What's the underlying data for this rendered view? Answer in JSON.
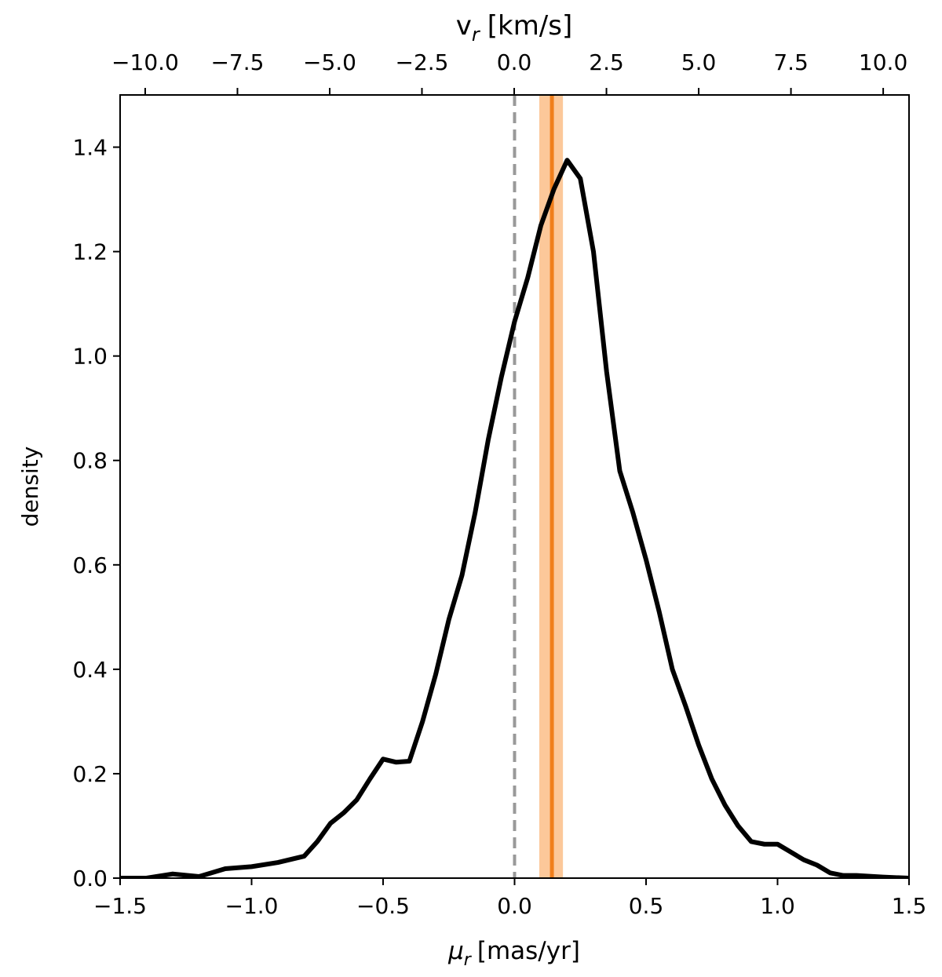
{
  "chart_data": {
    "type": "line",
    "ylabel": "density",
    "xlabel": {
      "symbol": "μ",
      "sub": "r",
      "unit": "[mas/yr]"
    },
    "x2label": {
      "symbol": "v",
      "sub": "r",
      "unit": "[km/s]"
    },
    "x": [
      -1.5,
      -1.4,
      -1.3,
      -1.2,
      -1.1,
      -1.0,
      -0.9,
      -0.8,
      -0.75,
      -0.7,
      -0.65,
      -0.6,
      -0.55,
      -0.5,
      -0.45,
      -0.4,
      -0.35,
      -0.3,
      -0.25,
      -0.2,
      -0.15,
      -0.1,
      -0.05,
      0,
      0.05,
      0.1,
      0.15,
      0.2,
      0.25,
      0.3,
      0.35,
      0.4,
      0.45,
      0.5,
      0.55,
      0.6,
      0.65,
      0.7,
      0.75,
      0.8,
      0.85,
      0.9,
      0.95,
      1.0,
      1.05,
      1.1,
      1.15,
      1.2,
      1.25,
      1.3,
      1.4,
      1.5
    ],
    "series": [
      {
        "color": "#000000",
        "values": [
          0.0,
          0.0,
          0.008,
          0.003,
          0.018,
          0.022,
          0.03,
          0.042,
          0.07,
          0.105,
          0.125,
          0.15,
          0.19,
          0.228,
          0.222,
          0.224,
          0.3,
          0.39,
          0.495,
          0.58,
          0.7,
          0.84,
          0.96,
          1.066,
          1.15,
          1.25,
          1.32,
          1.375,
          1.34,
          1.2,
          0.97,
          0.78,
          0.7,
          0.61,
          0.51,
          0.4,
          0.33,
          0.255,
          0.19,
          0.14,
          0.1,
          0.07,
          0.065,
          0.065,
          0.05,
          0.035,
          0.025,
          0.01,
          0.005,
          0.005,
          0.002,
          0.0
        ]
      }
    ],
    "reference_line": {
      "x": 0,
      "color": "#999999"
    },
    "estimate": {
      "x": 0.142,
      "band": [
        0.094,
        0.184
      ],
      "color": "#f07f1c",
      "band_color": "#fcc89a"
    },
    "xlim": [
      -1.5,
      1.5
    ],
    "ylim": [
      0,
      1.5
    ],
    "x2lim": [
      -10.68,
      10.7
    ],
    "xticks": [
      {
        "value": -1.5,
        "label": "−1.5"
      },
      {
        "value": -1.0,
        "label": "−1.0"
      },
      {
        "value": -0.5,
        "label": "−0.5"
      },
      {
        "value": 0,
        "label": "0.0"
      },
      {
        "value": 0.5,
        "label": "0.5"
      },
      {
        "value": 1.0,
        "label": "1.0"
      },
      {
        "value": 1.5,
        "label": "1.5"
      }
    ],
    "x2ticks": [
      {
        "value": -10,
        "label": "−10.0"
      },
      {
        "value": -7.5,
        "label": "−7.5"
      },
      {
        "value": -5,
        "label": "−5.0"
      },
      {
        "value": -2.5,
        "label": "−2.5"
      },
      {
        "value": 0,
        "label": "0.0"
      },
      {
        "value": 2.5,
        "label": "2.5"
      },
      {
        "value": 5,
        "label": "5.0"
      },
      {
        "value": 7.5,
        "label": "7.5"
      },
      {
        "value": 10,
        "label": "10.0"
      }
    ],
    "yticks": [
      {
        "value": 0,
        "label": "0.0"
      },
      {
        "value": 0.2,
        "label": "0.2"
      },
      {
        "value": 0.4,
        "label": "0.4"
      },
      {
        "value": 0.6,
        "label": "0.6"
      },
      {
        "value": 0.8,
        "label": "0.8"
      },
      {
        "value": 1.0,
        "label": "1.0"
      },
      {
        "value": 1.2,
        "label": "1.2"
      },
      {
        "value": 1.4,
        "label": "1.4"
      }
    ]
  }
}
